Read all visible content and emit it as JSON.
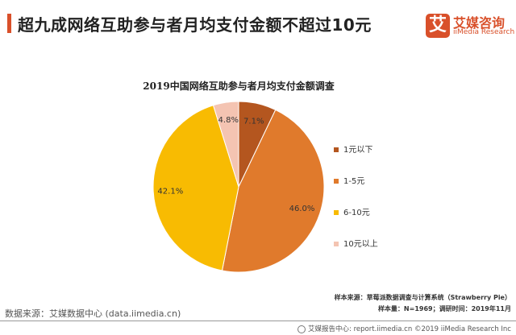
{
  "header": {
    "title": "超九成网络互助参与者月均支付金额不超过10元",
    "logo_mark": "艾",
    "logo_cn": "艾媒咨询",
    "logo_en": "iiMedia Research"
  },
  "chart_data": {
    "type": "pie",
    "title": "2019中国网络互助参与者月均支付金额调查",
    "categories": [
      "1元以下",
      "1-5元",
      "6-10元",
      "10元以上"
    ],
    "values": [
      7.1,
      46.0,
      42.1,
      4.8
    ],
    "labels": [
      "7.1%",
      "46.0%",
      "42.1%",
      "4.8%"
    ],
    "colors": [
      "#b4561f",
      "#e07a2c",
      "#f8bb02",
      "#f4c4b2"
    ],
    "start": "top",
    "direction": "clockwise",
    "legend": "right"
  },
  "notes": {
    "sample_source": "样本来源：草莓派数据调查与计算系统（Strawberry Pie）",
    "sample_size": "样本量：N=1969；调研时间：2019年11月"
  },
  "footer": {
    "data_source": "数据来源：艾媒数据中心 (data.iimedia.cn)",
    "report": "艾媒报告中心: report.iimedia.cn ©2019 iiMedia Research Inc"
  }
}
